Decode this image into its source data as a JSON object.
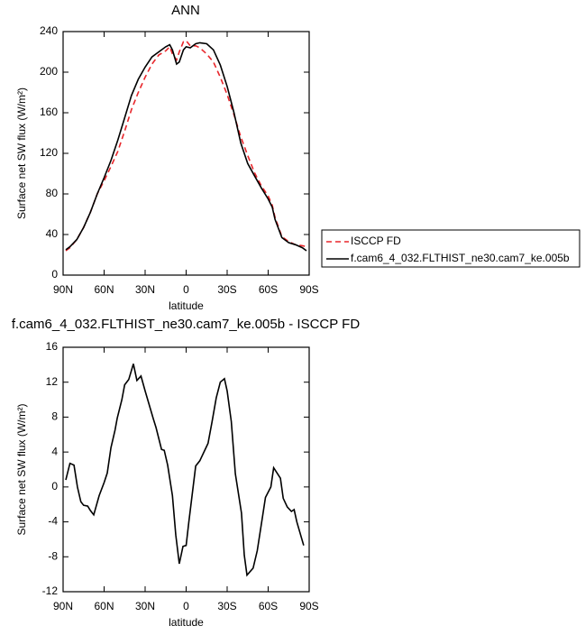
{
  "chart_data": [
    {
      "type": "line",
      "title": "ANN",
      "xlabel": "latitude",
      "ylabel": "Surface net SW flux (W/m²)",
      "x": [
        88,
        85,
        80,
        75,
        70,
        65,
        60,
        55,
        50,
        45,
        40,
        35,
        30,
        25,
        20,
        15,
        12,
        10,
        7,
        5,
        2,
        0,
        -3,
        -7,
        -10,
        -15,
        -20,
        -25,
        -30,
        -35,
        -40,
        -45,
        -50,
        -55,
        -60,
        -63,
        -65,
        -70,
        -75,
        -80,
        -85,
        -88
      ],
      "series": [
        {
          "name": "ISCCP FD",
          "color": "#e8262b",
          "dash": true,
          "values": [
            24,
            27,
            35,
            47,
            62,
            80,
            93,
            107,
            122,
            142,
            163,
            180,
            195,
            208,
            217,
            221,
            225,
            218,
            212,
            220,
            230,
            231,
            226,
            226,
            224,
            218,
            210,
            195,
            178,
            158,
            136,
            118,
            101,
            88,
            78,
            69,
            57,
            38,
            33,
            30,
            29,
            28
          ]
        },
        {
          "name": "f.cam6_4_032.FLTHIST_ne30.cam7_ke.005b",
          "color": "#000000",
          "dash": false,
          "values": [
            25,
            28,
            35,
            47,
            62,
            80,
            96,
            113,
            133,
            155,
            177,
            193,
            205,
            215,
            220,
            225,
            227,
            222,
            208,
            210,
            222,
            225,
            224,
            228,
            229,
            228,
            222,
            207,
            186,
            160,
            130,
            110,
            98,
            86,
            75,
            67,
            55,
            37,
            32,
            30,
            27,
            24
          ]
        }
      ],
      "xlim": [
        90,
        -90
      ],
      "xticks": [
        {
          "value": 90,
          "label": "90N"
        },
        {
          "value": 60,
          "label": "60N"
        },
        {
          "value": 30,
          "label": "30N"
        },
        0,
        {
          "value": -30,
          "label": "30S"
        },
        {
          "value": -60,
          "label": "60S"
        },
        {
          "value": -90,
          "label": "90S"
        }
      ],
      "ylim": [
        0,
        240
      ],
      "yticks": [
        0,
        40,
        80,
        120,
        160,
        200,
        240
      ],
      "legend": "right"
    },
    {
      "type": "line",
      "title": "f.cam6_4_032.FLTHIST_ne30.cam7_ke.005b - ISCCP FD",
      "xlabel": "latitude",
      "ylabel": "Surface net SW flux (W/m²)",
      "x": [
        88,
        85,
        82,
        79.5,
        77,
        75,
        72,
        70,
        67.6,
        63.6,
        60,
        57.7,
        55,
        52,
        50.4,
        47,
        45,
        42,
        38.6,
        36,
        33,
        30,
        24,
        22,
        18,
        16,
        13.5,
        10,
        7.6,
        5,
        2.3,
        0,
        -2,
        -7,
        -10,
        -16,
        -19,
        -22,
        -25,
        -28,
        -30,
        -33,
        -36,
        -40.5,
        -42.5,
        -44.5,
        -49,
        -52,
        -56,
        -58,
        -62,
        -64,
        -69,
        -71,
        -74,
        -77,
        -79,
        -81,
        -86
      ],
      "series": [
        {
          "color": "#000000",
          "dash": false,
          "values": [
            0.8,
            2.7,
            2.5,
            0,
            -1.7,
            -2.1,
            -2.2,
            -2.7,
            -3.2,
            -1,
            0.5,
            1.6,
            4.5,
            6.5,
            7.9,
            10,
            11.7,
            12.3,
            14.1,
            12.2,
            12.7,
            11,
            7.8,
            6.8,
            4.3,
            4.2,
            2.5,
            -1,
            -5.5,
            -8.8,
            -6.8,
            -6.7,
            -4,
            2.4,
            3,
            5,
            7.5,
            10.2,
            12,
            12.4,
            11,
            7.5,
            1.5,
            -3,
            -7.8,
            -10.1,
            -9.3,
            -7.3,
            -3.3,
            -1.2,
            0,
            2.2,
            1,
            -1.3,
            -2.3,
            -2.8,
            -2.6,
            -4,
            -6.7
          ]
        }
      ],
      "xlim": [
        90,
        -90
      ],
      "xticks": [
        {
          "value": 90,
          "label": "90N"
        },
        {
          "value": 60,
          "label": "60N"
        },
        {
          "value": 30,
          "label": "30N"
        },
        0,
        {
          "value": -30,
          "label": "30S"
        },
        {
          "value": -60,
          "label": "60S"
        },
        {
          "value": -90,
          "label": "90S"
        }
      ],
      "ylim": [
        -12,
        16
      ],
      "yticks": [
        -12,
        -8,
        -4,
        0,
        4,
        8,
        12,
        16
      ]
    }
  ]
}
